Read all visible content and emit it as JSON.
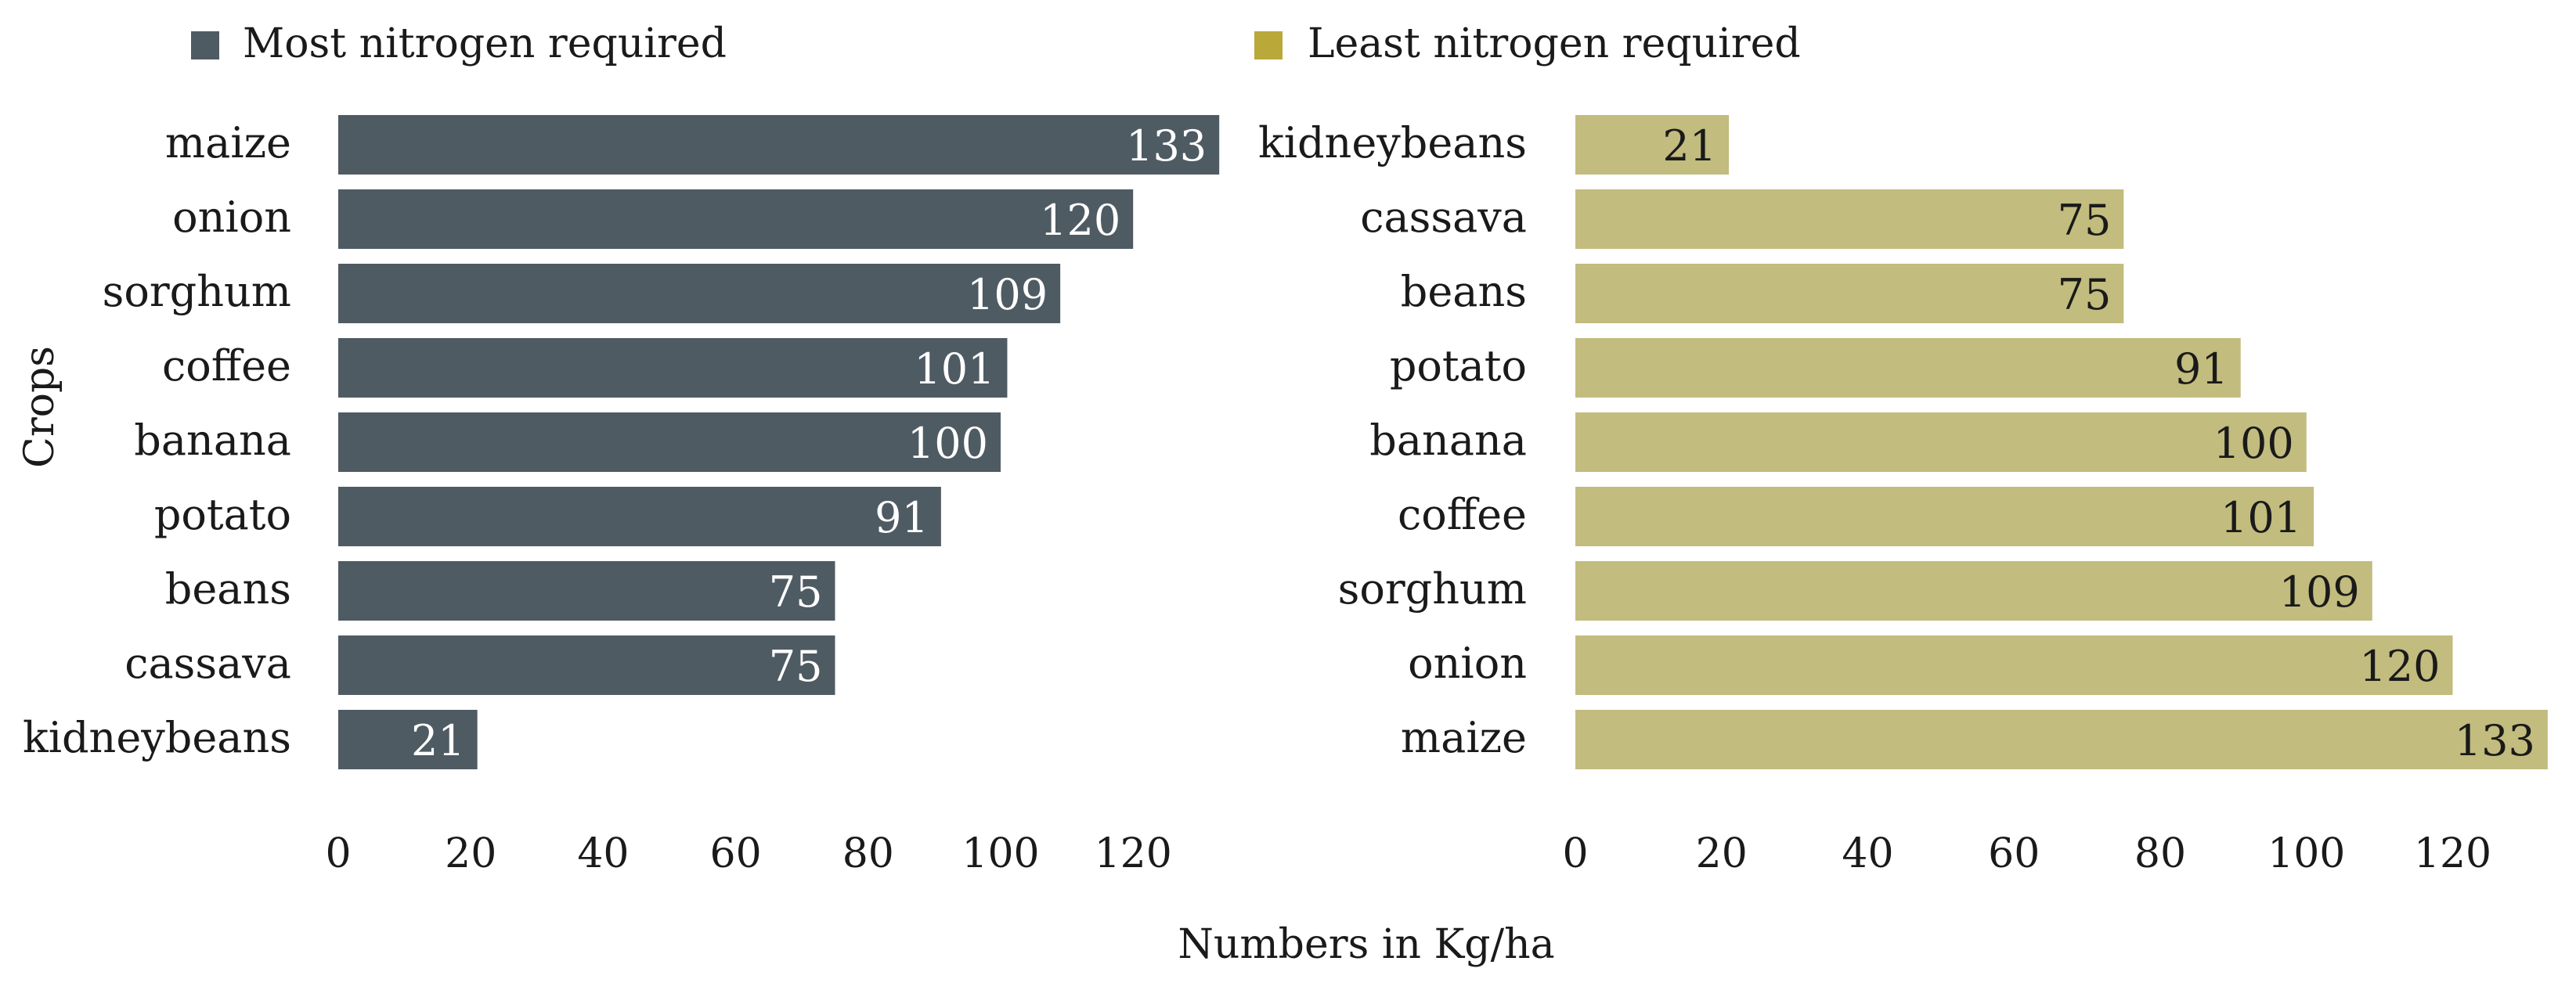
{
  "chart_data": [
    {
      "type": "bar",
      "orientation": "horizontal",
      "legend": "Most nitrogen required",
      "color": "#4f5b63",
      "categories": [
        "maize",
        "onion",
        "sorghum",
        "coffee",
        "banana",
        "potato",
        "beans",
        "cassava",
        "kidneybeans"
      ],
      "values": [
        133,
        120,
        109,
        101,
        100,
        91,
        75,
        75,
        21
      ],
      "xticks": [
        0,
        20,
        40,
        60,
        80,
        100,
        120
      ],
      "xlim": [
        0,
        133
      ],
      "ylabel": "Crops"
    },
    {
      "type": "bar",
      "orientation": "horizontal",
      "legend": "Least nitrogen required",
      "color": "#c2bc7e",
      "legend_color": "#b9a83a",
      "categories": [
        "kidneybeans",
        "cassava",
        "beans",
        "potato",
        "banana",
        "coffee",
        "sorghum",
        "onion",
        "maize"
      ],
      "values": [
        21,
        75,
        75,
        91,
        100,
        101,
        109,
        120,
        133
      ],
      "xticks": [
        0,
        20,
        40,
        60,
        80,
        100,
        120
      ],
      "xlim": [
        0,
        133
      ]
    }
  ],
  "xlabel": "Numbers in Kg/ha",
  "ylabel": "Crops"
}
